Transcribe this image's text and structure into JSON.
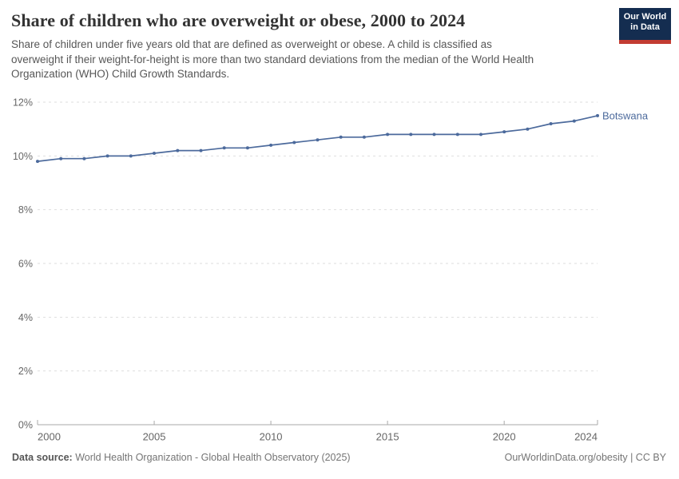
{
  "header": {
    "title": "Share of children who are overweight or obese, 2000 to 2024",
    "subtitle_lines": [
      "Share of children under five years old that are defined as overweight or obese. A child is classified as",
      "overweight if their weight-for-height is more than two standard deviations from the median of the World Health",
      "Organization (WHO) Child Growth Standards."
    ],
    "logo": {
      "line1": "Our World",
      "line2": "in Data"
    }
  },
  "chart_data": {
    "type": "line",
    "title": "Share of children who are overweight or obese, 2000 to 2024",
    "x": [
      2000,
      2001,
      2002,
      2003,
      2004,
      2005,
      2006,
      2007,
      2008,
      2009,
      2010,
      2011,
      2012,
      2013,
      2014,
      2015,
      2016,
      2017,
      2018,
      2019,
      2020,
      2021,
      2022,
      2023,
      2024
    ],
    "series": [
      {
        "name": "Botswana",
        "color": "#4C6A9C",
        "values": [
          9.8,
          9.9,
          9.9,
          10.0,
          10.0,
          10.1,
          10.2,
          10.2,
          10.3,
          10.3,
          10.4,
          10.5,
          10.6,
          10.7,
          10.7,
          10.8,
          10.8,
          10.8,
          10.8,
          10.8,
          10.9,
          11.0,
          11.2,
          11.3,
          11.5
        ]
      }
    ],
    "xlabel": "",
    "ylabel": "",
    "ylim": [
      0,
      12
    ],
    "yticks": [
      0,
      2,
      4,
      6,
      8,
      10,
      12
    ],
    "ytick_suffix": "%",
    "xticks": [
      2000,
      2005,
      2010,
      2015,
      2020,
      2024
    ],
    "grid": "horizontal-dashed",
    "legend_position": "end-of-line-label"
  },
  "footer": {
    "datasource_label": "Data source:",
    "datasource_text": " World Health Organization - Global Health Observatory (2025)",
    "license_text": "OurWorldinData.org/obesity | CC BY"
  },
  "colors": {
    "accent_line": "#4C6A9C",
    "gridline": "#dedede",
    "axis": "#a9a9a9",
    "tick_label": "#666666",
    "title": "#333333",
    "subtitle": "#575757",
    "footer": "#757575",
    "logo_bg": "#142d50",
    "logo_bar": "#c33c32"
  }
}
